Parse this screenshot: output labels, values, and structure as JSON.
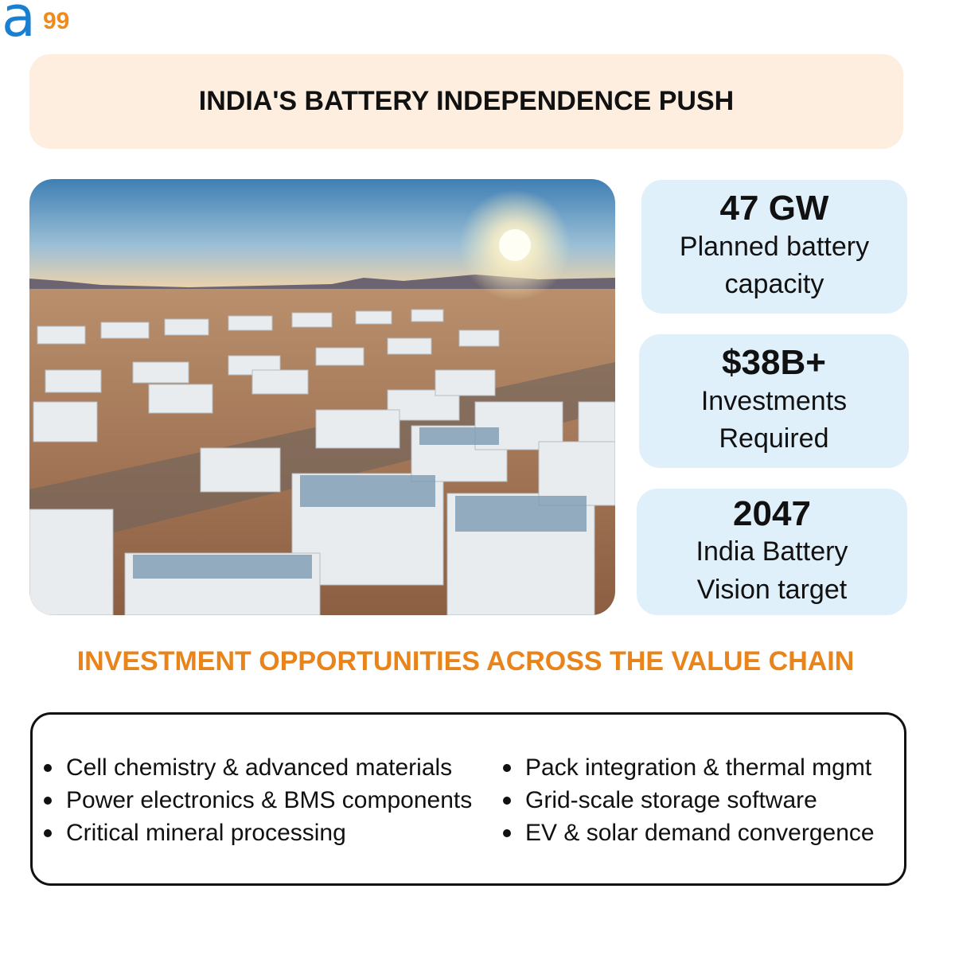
{
  "logo": {
    "mark": "a",
    "number": "99"
  },
  "header": {
    "title": "INDIA'S BATTERY INDEPENDENCE PUSH"
  },
  "stats": [
    {
      "value": "47 GW",
      "label": "Planned battery capacity"
    },
    {
      "value": "$38B+",
      "label": "Investments Required"
    },
    {
      "value": "2047",
      "label": "India Battery Vision target"
    }
  ],
  "section": {
    "heading": "INVESTMENT OPPORTUNITIES ACROSS THE VALUE CHAIN",
    "left_items": [
      "Cell chemistry & advanced materials",
      "Power electronics & BMS components",
      "Critical mineral processing"
    ],
    "right_items": [
      "Pack integration & thermal mgmt",
      "Grid-scale storage software",
      "EV & solar demand convergence"
    ]
  }
}
